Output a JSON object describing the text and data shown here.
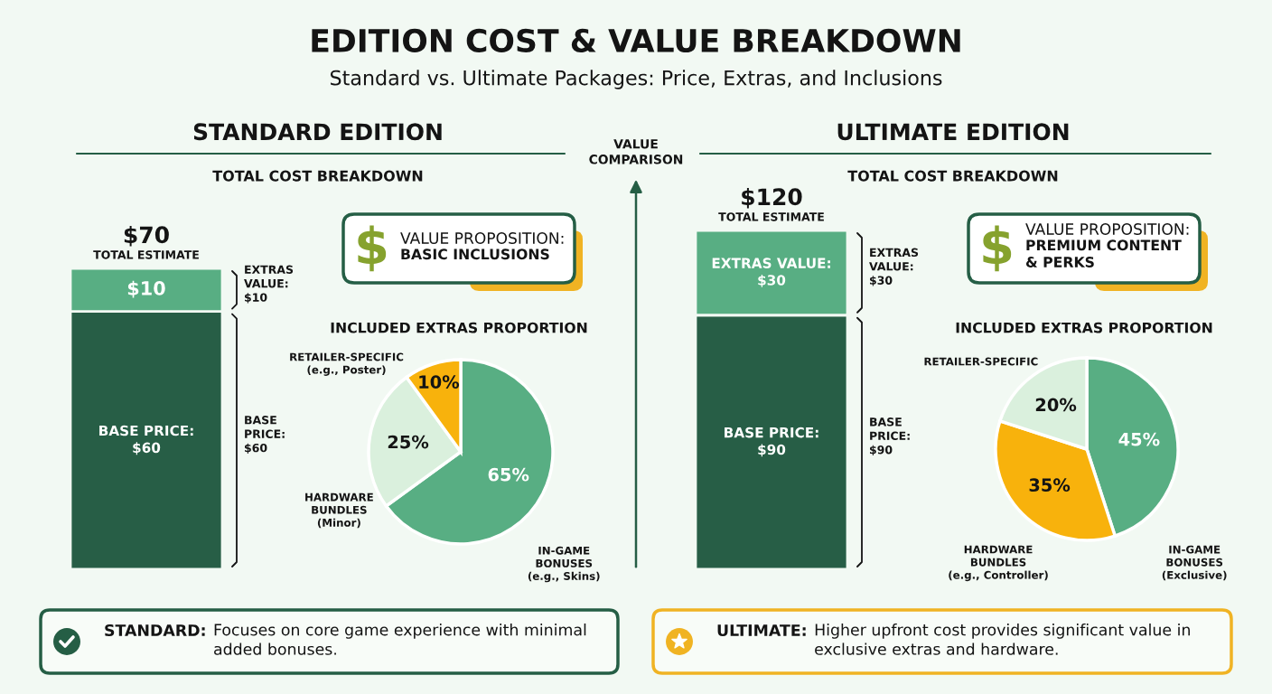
{
  "chart_data": [
    {
      "type": "other",
      "title": "EDITION COST & VALUE BREAKDOWN",
      "subtitle": "Standard vs. Ultimate Packages: Price, Extras, and Inclusions",
      "annotations": [
        "STANDARD EDITION",
        "VALUE\nCOMPARISON",
        "ULTIMATE EDITION"
      ]
    },
    {
      "type": "bar",
      "title": "TOTAL COST BREAKDOWN",
      "stacked": true,
      "tick_labels": false,
      "categories": [
        null
      ],
      "series": [
        {
          "color": "#275e46",
          "values": [
            60
          ],
          "value_labels": [
            "BASE PRICE:\n$60"
          ]
        },
        {
          "color": "#58ae83",
          "values": [
            10
          ],
          "value_labels": [
            "$10"
          ]
        }
      ],
      "totals": [
        "$70"
      ],
      "annotations": [
        {
          "text": "TOTAL ESTIMATE",
          "y": 70
        },
        "EXTRAS\nVALUE:\n$10",
        "BASE\nPRICE:\n$60"
      ]
    },
    {
      "type": "other",
      "title": "VALUE PROPOSITION:",
      "annotations": [
        "BASIC INCLUSIONS"
      ]
    },
    {
      "type": "pie",
      "title": "INCLUDED EXTRAS PROPORTION",
      "categories": [
        "IN-GAME\nBONUSES\n(e.g., Skins)",
        "HARDWARE\nBUNDLES\n(Minor)",
        "RETAILER-SPECIFIC\n(e.g., Poster)"
      ],
      "values": [
        65,
        25,
        10
      ],
      "colors": [
        "#58ae83",
        "#daf0dd",
        "#f8b20c"
      ],
      "value_labels": [
        "65%",
        "25%",
        "10%"
      ]
    },
    {
      "type": "bar",
      "title": "TOTAL COST BREAKDOWN",
      "stacked": true,
      "tick_labels": false,
      "categories": [
        null
      ],
      "series": [
        {
          "color": "#275e46",
          "values": [
            90
          ],
          "value_labels": [
            "BASE PRICE:\n$90"
          ]
        },
        {
          "color": "#58ae83",
          "values": [
            30
          ],
          "value_labels": [
            "EXTRAS VALUE:\n$30"
          ]
        }
      ],
      "totals": [
        "$120"
      ],
      "annotations": [
        {
          "text": "TOTAL ESTIMATE",
          "y": 120
        },
        "EXTRAS\nVALUE:\n$30",
        "BASE\nPRICE:\n$90"
      ]
    },
    {
      "type": "other",
      "title": "VALUE PROPOSITION:",
      "annotations": [
        "PREMIUM CONTENT\n& PERKS"
      ]
    },
    {
      "type": "pie",
      "title": "INCLUDED EXTRAS PROPORTION",
      "categories": [
        "IN-GAME\nBONUSES\n(Exclusive)",
        "HARDWARE\nBUNDLES\n(e.g., Controller)",
        "RETAILER-SPECIFIC"
      ],
      "values": [
        45,
        35,
        20
      ],
      "colors": [
        "#58ae83",
        "#f8b20c",
        "#daf0dd"
      ],
      "value_labels": [
        "45%",
        "35%",
        "20%"
      ]
    },
    {
      "type": "other",
      "title": "STANDARD:",
      "annotations": [
        "Focuses on core game experience with minimal\nadded bonuses."
      ]
    },
    {
      "type": "other",
      "title": "ULTIMATE:",
      "annotations": [
        "Higher upfront cost provides significant value in\nexclusive extras and hardware."
      ]
    }
  ]
}
